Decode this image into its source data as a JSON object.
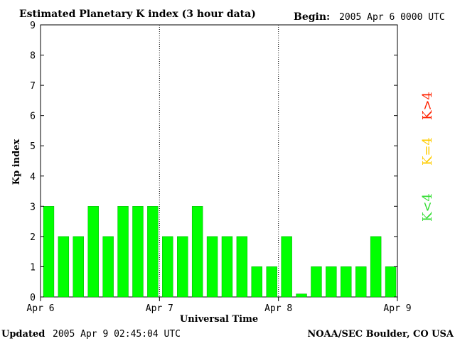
{
  "header": {
    "title": "Estimated Planetary K index (3 hour data)",
    "begin_label": "Begin:",
    "begin_value": "2005 Apr 6 0000 UTC"
  },
  "footer": {
    "updated_label": "Updated",
    "updated_value": "2005 Apr  9 02:45:04 UTC",
    "credit": "NOAA/SEC Boulder, CO USA"
  },
  "legend": {
    "items": [
      {
        "label": "K<4",
        "color": "#33dd33"
      },
      {
        "label": "K=4",
        "color": "#ffcc00"
      },
      {
        "label": "K>4",
        "color": "#ff2200"
      }
    ]
  },
  "colors": {
    "bar": "#00ff00",
    "bar_edge": "#00aa00"
  },
  "chart_data": {
    "type": "bar",
    "title": "Estimated Planetary K index (3 hour data)",
    "xlabel": "Universal Time",
    "ylabel": "Kp index",
    "ylim": [
      0,
      9
    ],
    "yticks": [
      0,
      1,
      2,
      3,
      4,
      5,
      6,
      7,
      8,
      9
    ],
    "xticks": [
      "Apr 6",
      "Apr 7",
      "Apr 8",
      "Apr 9"
    ],
    "grid": "dotted vertical lines at day boundaries",
    "values": [
      3,
      2,
      2,
      3,
      2,
      3,
      3,
      3,
      2,
      2,
      3,
      2,
      2,
      2,
      1,
      1,
      2,
      0.1,
      1,
      1,
      1,
      1,
      2,
      1
    ]
  }
}
